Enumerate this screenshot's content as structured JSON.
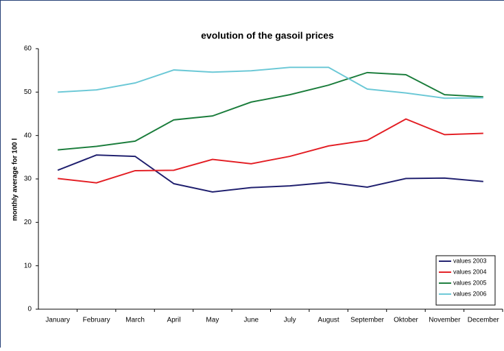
{
  "chart_data": {
    "type": "line",
    "title": "evolution of the gasoil prices",
    "y_label": "monthly average for 100 l",
    "categories": [
      "January",
      "February",
      "March",
      "April",
      "May",
      "June",
      "July",
      "August",
      "September",
      "Oktober",
      "November",
      "December"
    ],
    "series": [
      {
        "name": "values 2003",
        "color": "#1f1f6e",
        "values": [
          32,
          35.5,
          35.2,
          28.9,
          27,
          28,
          28.4,
          29.2,
          28.1,
          30.1,
          30.2,
          29.4
        ]
      },
      {
        "name": "values 2004",
        "color": "#e31e24",
        "values": [
          30.1,
          29.1,
          31.9,
          32,
          34.5,
          33.5,
          35.2,
          37.6,
          38.9,
          43.8,
          40.2,
          40.5
        ]
      },
      {
        "name": "values 2005",
        "color": "#1b7d3c",
        "values": [
          36.7,
          37.5,
          38.7,
          43.6,
          44.5,
          47.7,
          49.4,
          51.6,
          54.5,
          54,
          49.4,
          48.9
        ]
      },
      {
        "name": "values 2006",
        "color": "#6bc8d6",
        "values": [
          50,
          50.5,
          52.1,
          55.1,
          54.6,
          54.9,
          55.7,
          55.7,
          50.7,
          49.8,
          48.6,
          48.7
        ]
      }
    ],
    "ylim": [
      0,
      60
    ],
    "yticks": [
      0,
      10,
      20,
      30,
      40,
      50,
      60
    ],
    "legend": "lower-right"
  }
}
